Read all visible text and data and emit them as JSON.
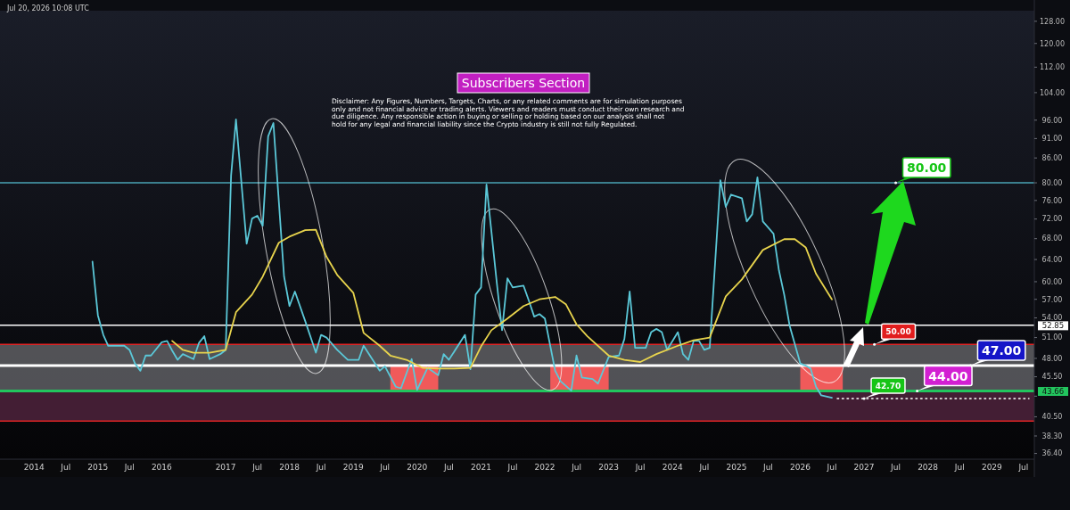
{
  "chart_data": {
    "type": "line",
    "subtitle": "Subscribers Section",
    "annotations": [
      "Jul 20, 2026 10:08 UTC",
      "Disclaimer: Any Figures, Numbers, Targets, Charts, or any related comments are for simulation purposes only and not financial advice or trading alerts. Viewers and readers must conduct their own research and due diligence. Any responsible action in buying or selling or holding based on our analysis shall not hold for any legal and financial liability since the Crypto industry is still not fully Regulated.",
      {
        "text": "80.00",
        "x": "2027-07",
        "y": 80
      },
      {
        "text": "50.00",
        "x": "2027-03",
        "y": 50
      },
      {
        "text": "47.00",
        "x": "2028-09",
        "y": 47
      },
      {
        "text": "44.00",
        "x": "2027-11",
        "y": 43.66
      },
      {
        "text": "42.70",
        "x": "2027-01",
        "y": 42.7
      }
    ],
    "xlim": [
      "2013-06-20",
      "2029-09"
    ],
    "xticks": [
      {
        "value": "2014",
        "label": "2014"
      },
      {
        "value": "2014-07",
        "label": "Jul"
      },
      {
        "value": "2015",
        "label": "2015"
      },
      {
        "value": "2015-07",
        "label": "Jul"
      },
      {
        "value": "2016",
        "label": "2016"
      },
      {
        "value": "2017",
        "label": "2017"
      },
      {
        "value": "2017-07",
        "label": "Jul"
      },
      {
        "value": "2018",
        "label": "2018"
      },
      {
        "value": "2018-07",
        "label": "Jul"
      },
      {
        "value": "2019",
        "label": "2019"
      },
      {
        "value": "2019-07",
        "label": "Jul"
      },
      {
        "value": "2020",
        "label": "2020"
      },
      {
        "value": "2020-07",
        "label": "Jul"
      },
      {
        "value": "2021",
        "label": "2021"
      },
      {
        "value": "2021-07",
        "label": "Jul"
      },
      {
        "value": "2022",
        "label": "2022"
      },
      {
        "value": "2022-07",
        "label": "Jul"
      },
      {
        "value": "2023",
        "label": "2023"
      },
      {
        "value": "2023-07",
        "label": "Jul"
      },
      {
        "value": "2024",
        "label": "2024"
      },
      {
        "value": "2024-07",
        "label": "Jul"
      },
      {
        "value": "2025",
        "label": "2025"
      },
      {
        "value": "2025-07",
        "label": "Jul"
      },
      {
        "value": "2026",
        "label": "2026"
      },
      {
        "value": "2026-07",
        "label": "Jul"
      },
      {
        "value": "2027",
        "label": "2027"
      },
      {
        "value": "2027-07",
        "label": "Jul"
      },
      {
        "value": "2028",
        "label": "2028"
      },
      {
        "value": "2028-07",
        "label": "Jul"
      },
      {
        "value": "2029",
        "label": "2029"
      },
      {
        "value": "2029-07",
        "label": "Jul"
      }
    ],
    "log": true,
    "ylim": [
      35.8,
      132
    ],
    "yticks": [
      {
        "value": 36.4,
        "label": "36.40"
      },
      {
        "value": 38.3,
        "label": "38.30"
      },
      {
        "value": 40.5,
        "label": "40.50"
      },
      {
        "value": 43,
        "label": null
      },
      {
        "value": 45.5,
        "label": "45.50"
      },
      {
        "value": 48,
        "label": "48.00"
      },
      {
        "value": 51,
        "label": "51.00"
      },
      {
        "value": 54,
        "label": "54.00"
      },
      {
        "value": 57,
        "label": "57.00"
      },
      {
        "value": 60,
        "label": "60.00"
      },
      {
        "value": 64,
        "label": "64.00"
      },
      {
        "value": 68,
        "label": "68.00"
      },
      {
        "value": 72,
        "label": "72.00"
      },
      {
        "value": 76,
        "label": "76.00"
      },
      {
        "value": 80,
        "label": "80.00"
      },
      {
        "value": 86,
        "label": "86.00"
      },
      {
        "value": 91,
        "label": "91.00"
      },
      {
        "value": 96,
        "label": "96.00"
      },
      {
        "value": 104,
        "label": "104.00"
      },
      {
        "value": 112,
        "label": "112.00"
      },
      {
        "value": 120,
        "label": "120.00"
      },
      {
        "value": 128,
        "label": "128.00"
      }
    ],
    "bands": [
      {
        "axis": "y",
        "from": 43.66,
        "to": 50,
        "color": "#5a5a5e"
      },
      {
        "axis": "y",
        "from": 40,
        "to": 43.66,
        "color": "#4a2138"
      },
      {
        "axis": "x",
        "from": "2019-08",
        "to": "2020-05",
        "color": "#f05a5a"
      },
      {
        "axis": "x",
        "from": "2022-02",
        "to": "2023-01",
        "color": "#f05a5a"
      },
      {
        "axis": "x",
        "from": "2026-01",
        "to": "2026-09",
        "color": "#f05a5a"
      }
    ],
    "ref_lines": [
      {
        "axis": "y",
        "value": 80,
        "color": "#4aa3b5"
      },
      {
        "axis": "y",
        "value": 52.85,
        "label": "52.85",
        "color": "#ffffff"
      },
      {
        "axis": "y",
        "value": 47,
        "color": "#ffffff"
      },
      {
        "axis": "y",
        "value": 50,
        "color": "#e02424"
      },
      {
        "axis": "y",
        "value": 40,
        "color": "#e02424"
      },
      {
        "axis": "y",
        "value": 43.66,
        "label": "43.66",
        "color": "#22c55e"
      }
    ],
    "series": [
      {
        "color": "#5bc8d8",
        "x": [
          "2014-12",
          "2015-01",
          "2015-02",
          "2015-03",
          "2015-06",
          "2015-07",
          "2015-08",
          "2015-09",
          "2015-10",
          "2015-11",
          "2016-01",
          "2016-02",
          "2016-03",
          "2016-04",
          "2016-05",
          "2016-07",
          "2016-08",
          "2016-09",
          "2016-10",
          "2016-12",
          "2017-01",
          "2017-02",
          "2017-03",
          "2017-05",
          "2017-06",
          "2017-07",
          "2017-08",
          "2017-09",
          "2017-10",
          "2017-12",
          "2018-01",
          "2018-02",
          "2018-04",
          "2018-06",
          "2018-07",
          "2018-08",
          "2018-10",
          "2018-12",
          "2019-02",
          "2019-03",
          "2019-06",
          "2019-07",
          "2019-09",
          "2019-10",
          "2019-12",
          "2020-01",
          "2020-03",
          "2020-05",
          "2020-06",
          "2020-07",
          "2020-10",
          "2020-11",
          "2020-12",
          "2021-01",
          "2021-02",
          "2021-04",
          "2021-05",
          "2021-06",
          "2021-07",
          "2021-09",
          "2021-10",
          "2021-11",
          "2021-12",
          "2022-01",
          "2022-03",
          "2022-04",
          "2022-06",
          "2022-07",
          "2022-08",
          "2022-10",
          "2022-11",
          "2023-01",
          "2023-03",
          "2023-04",
          "2023-05",
          "2023-06",
          "2023-08",
          "2023-09",
          "2023-10",
          "2023-11",
          "2023-12",
          "2024-02",
          "2024-03",
          "2024-04",
          "2024-05",
          "2024-06",
          "2024-07",
          "2024-08",
          "2024-10",
          "2024-11",
          "2024-12",
          "2025-02",
          "2025-03",
          "2025-04",
          "2025-05",
          "2025-06",
          "2025-08",
          "2025-09",
          "2025-10",
          "2025-11",
          "2026-01",
          "2026-02",
          "2026-03",
          "2026-04",
          "2026-05",
          "2026-07"
        ],
        "values": [
          63.6,
          54.4,
          51.4,
          49.8,
          49.8,
          49.2,
          47.3,
          46.3,
          48.4,
          48.4,
          50.3,
          50.5,
          49.1,
          47.8,
          48.6,
          47.9,
          50.2,
          51.2,
          47.9,
          48.6,
          49.2,
          81.7,
          96.2,
          67,
          72.1,
          72.7,
          70.6,
          91.6,
          95.2,
          60.9,
          55.9,
          58.3,
          53.5,
          48.8,
          51.4,
          51,
          49.2,
          47.8,
          47.8,
          49.8,
          46.3,
          46.9,
          44.2,
          44,
          47.9,
          43.8,
          46.7,
          45.7,
          48.6,
          47.8,
          51.4,
          46.5,
          57.8,
          59,
          79.6,
          59.8,
          52.1,
          60.6,
          59,
          59.3,
          56.8,
          54.2,
          54.6,
          53.9,
          46.3,
          44.9,
          43.7,
          48.4,
          45.4,
          45.2,
          44.6,
          48.2,
          48.4,
          50.8,
          58.3,
          49.5,
          49.5,
          51.8,
          52.3,
          51.8,
          49.2,
          51.8,
          48.6,
          47.8,
          50.5,
          50.5,
          49.2,
          49.5,
          80.6,
          74.6,
          77.3,
          76.5,
          71.5,
          73,
          81.3,
          71.5,
          69,
          62,
          57.8,
          52.8,
          47.3,
          47,
          46.6,
          44.2,
          43.1,
          42.8
        ]
      },
      {
        "color": "#e8d44d",
        "x": [
          "2016-03",
          "2016-05",
          "2016-07",
          "2016-10",
          "2017-01",
          "2017-03",
          "2017-06",
          "2017-08",
          "2017-11",
          "2018-01",
          "2018-04",
          "2018-06",
          "2018-08",
          "2018-10",
          "2019-01",
          "2019-03",
          "2019-06",
          "2019-08",
          "2019-11",
          "2020-02",
          "2020-05",
          "2020-08",
          "2020-11",
          "2021-01",
          "2021-03",
          "2021-06",
          "2021-09",
          "2021-12",
          "2022-03",
          "2022-05",
          "2022-07",
          "2022-09",
          "2023-01",
          "2023-04",
          "2023-07",
          "2023-10",
          "2024-02",
          "2024-05",
          "2024-08",
          "2024-11",
          "2025-02",
          "2025-06",
          "2025-10",
          "2025-12",
          "2026-02",
          "2026-04",
          "2026-07"
        ],
        "values": [
          50.5,
          49.2,
          48.8,
          48.8,
          49.2,
          54.9,
          57.8,
          60.9,
          67.2,
          68.4,
          69.7,
          69.8,
          64.5,
          61.2,
          58.1,
          51.7,
          49.8,
          48.4,
          47.8,
          46.7,
          46.6,
          46.6,
          46.7,
          49.7,
          52.1,
          53.9,
          55.9,
          57,
          57.4,
          56.2,
          53,
          51.2,
          48.4,
          47.8,
          47.5,
          48.6,
          49.8,
          50.6,
          51,
          57.5,
          60.4,
          65.8,
          67.9,
          67.9,
          66.3,
          61.4,
          57
        ]
      },
      {
        "color": "#ffffff",
        "line_style": "dotted",
        "x": [
          "2026-08",
          "2029-08"
        ],
        "values": [
          42.7,
          42.7
        ]
      }
    ]
  }
}
